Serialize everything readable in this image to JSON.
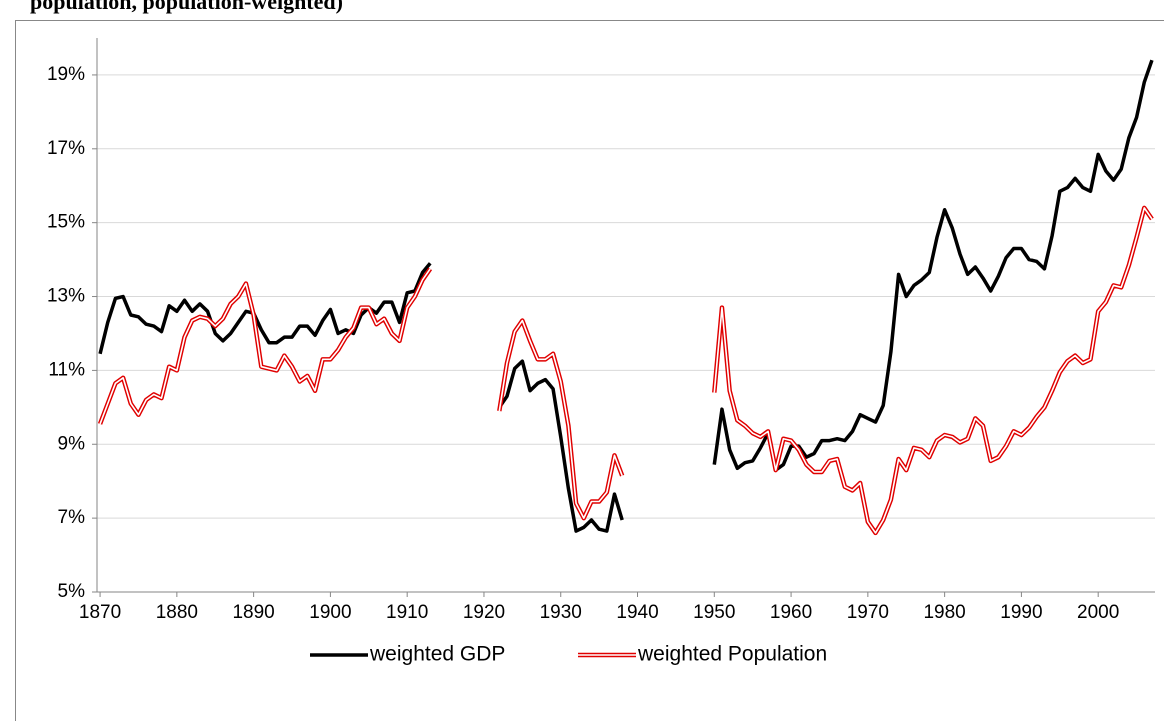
{
  "chart_data": {
    "type": "line",
    "title": "population, population-weighted)",
    "x": [
      1870,
      1871,
      1872,
      1873,
      1874,
      1875,
      1876,
      1877,
      1878,
      1879,
      1880,
      1881,
      1882,
      1883,
      1884,
      1885,
      1886,
      1887,
      1888,
      1889,
      1890,
      1891,
      1892,
      1893,
      1894,
      1895,
      1896,
      1897,
      1898,
      1899,
      1900,
      1901,
      1902,
      1903,
      1904,
      1905,
      1906,
      1907,
      1908,
      1909,
      1910,
      1911,
      1912,
      1913,
      1914,
      1915,
      1916,
      1917,
      1918,
      1919,
      1920,
      1921,
      1922,
      1923,
      1924,
      1925,
      1926,
      1927,
      1928,
      1929,
      1930,
      1931,
      1932,
      1933,
      1934,
      1935,
      1936,
      1937,
      1938,
      1939,
      1940,
      1941,
      1942,
      1943,
      1944,
      1945,
      1946,
      1947,
      1948,
      1949,
      1950,
      1951,
      1952,
      1953,
      1954,
      1955,
      1956,
      1957,
      1958,
      1959,
      1960,
      1961,
      1962,
      1963,
      1964,
      1965,
      1966,
      1967,
      1968,
      1969,
      1970,
      1971,
      1972,
      1973,
      1974,
      1975,
      1976,
      1977,
      1978,
      1979,
      1980,
      1981,
      1982,
      1983,
      1984,
      1985,
      1986,
      1987,
      1988,
      1989,
      1990,
      1991,
      1992,
      1993,
      1994,
      1995,
      1996,
      1997,
      1998,
      1999,
      2000,
      2001,
      2002,
      2003,
      2004,
      2005,
      2006,
      2007
    ],
    "series": [
      {
        "name": "weighted GDP",
        "color": "#000000",
        "style": "solid",
        "values": [
          11.45,
          12.3,
          12.95,
          13.0,
          12.5,
          12.45,
          12.25,
          12.2,
          12.05,
          12.75,
          12.6,
          12.9,
          12.6,
          12.8,
          12.6,
          12.0,
          11.8,
          12.0,
          12.3,
          12.6,
          12.55,
          12.1,
          11.75,
          11.75,
          11.9,
          11.9,
          12.2,
          12.2,
          11.95,
          12.35,
          12.65,
          12.0,
          12.1,
          12.0,
          12.5,
          12.7,
          12.55,
          12.85,
          12.85,
          12.3,
          13.1,
          13.15,
          13.65,
          13.9,
          null,
          null,
          null,
          null,
          null,
          null,
          null,
          null,
          10.0,
          10.3,
          11.05,
          11.25,
          10.45,
          10.65,
          10.75,
          10.5,
          9.2,
          7.8,
          6.65,
          6.75,
          6.95,
          6.7,
          6.65,
          7.65,
          6.95,
          null,
          null,
          null,
          null,
          null,
          null,
          null,
          null,
          null,
          null,
          null,
          8.45,
          9.95,
          8.85,
          8.35,
          8.5,
          8.55,
          8.9,
          9.3,
          8.3,
          8.45,
          8.95,
          8.95,
          8.65,
          8.75,
          9.1,
          9.1,
          9.15,
          9.1,
          9.35,
          9.8,
          9.7,
          9.6,
          10.05,
          11.5,
          13.6,
          13.0,
          13.3,
          13.45,
          13.65,
          14.6,
          15.35,
          14.85,
          14.15,
          13.6,
          13.8,
          13.5,
          13.15,
          13.55,
          14.05,
          14.3,
          14.3,
          14.0,
          13.95,
          13.75,
          14.65,
          15.85,
          15.95,
          16.2,
          15.95,
          15.85,
          16.85,
          16.4,
          16.15,
          16.45,
          17.3,
          17.85,
          18.8,
          19.4
        ]
      },
      {
        "name": "weighted Population",
        "color": "#e00000",
        "style": "double",
        "values": [
          9.55,
          10.1,
          10.65,
          10.8,
          10.1,
          9.8,
          10.2,
          10.35,
          10.25,
          11.1,
          11.0,
          11.9,
          12.35,
          12.45,
          12.4,
          12.2,
          12.4,
          12.8,
          13.0,
          13.35,
          12.5,
          11.1,
          11.05,
          11.0,
          11.4,
          11.1,
          10.7,
          10.85,
          10.45,
          11.3,
          11.3,
          11.55,
          11.9,
          12.15,
          12.7,
          12.7,
          12.25,
          12.4,
          12.0,
          11.8,
          12.7,
          13.0,
          13.45,
          13.75,
          null,
          null,
          null,
          null,
          null,
          null,
          null,
          null,
          9.9,
          11.2,
          12.05,
          12.35,
          11.8,
          11.3,
          11.3,
          11.45,
          10.7,
          9.5,
          7.4,
          7.0,
          7.45,
          7.45,
          7.7,
          8.7,
          8.15,
          null,
          null,
          null,
          null,
          null,
          null,
          null,
          null,
          null,
          null,
          null,
          10.4,
          12.7,
          10.45,
          9.65,
          9.5,
          9.3,
          9.2,
          9.35,
          8.3,
          9.15,
          9.1,
          8.85,
          8.45,
          8.25,
          8.25,
          8.55,
          8.6,
          7.85,
          7.75,
          7.95,
          6.9,
          6.6,
          6.95,
          7.5,
          8.6,
          8.3,
          8.9,
          8.85,
          8.65,
          9.1,
          9.25,
          9.2,
          9.05,
          9.15,
          9.7,
          9.5,
          8.55,
          8.65,
          8.95,
          9.35,
          9.25,
          9.45,
          9.75,
          10.0,
          10.45,
          10.95,
          11.25,
          11.4,
          11.2,
          11.3,
          12.6,
          12.85,
          13.3,
          13.25,
          13.85,
          14.6,
          15.4,
          15.1
        ]
      }
    ],
    "xlim": [
      1869.6,
      2007.4
    ],
    "xticks": [
      1870,
      1880,
      1890,
      1900,
      1910,
      1920,
      1930,
      1940,
      1950,
      1960,
      1970,
      1980,
      1990,
      2000
    ],
    "ylim": [
      5,
      20
    ],
    "yticks": [
      {
        "value": 5,
        "label": "5%"
      },
      {
        "value": 7,
        "label": "7%"
      },
      {
        "value": 9,
        "label": "9%"
      },
      {
        "value": 11,
        "label": "11%"
      },
      {
        "value": 13,
        "label": "13%"
      },
      {
        "value": 15,
        "label": "15%"
      },
      {
        "value": 17,
        "label": "17%"
      },
      {
        "value": 19,
        "label": "19%"
      }
    ],
    "grid": true,
    "legend": "bottom"
  }
}
